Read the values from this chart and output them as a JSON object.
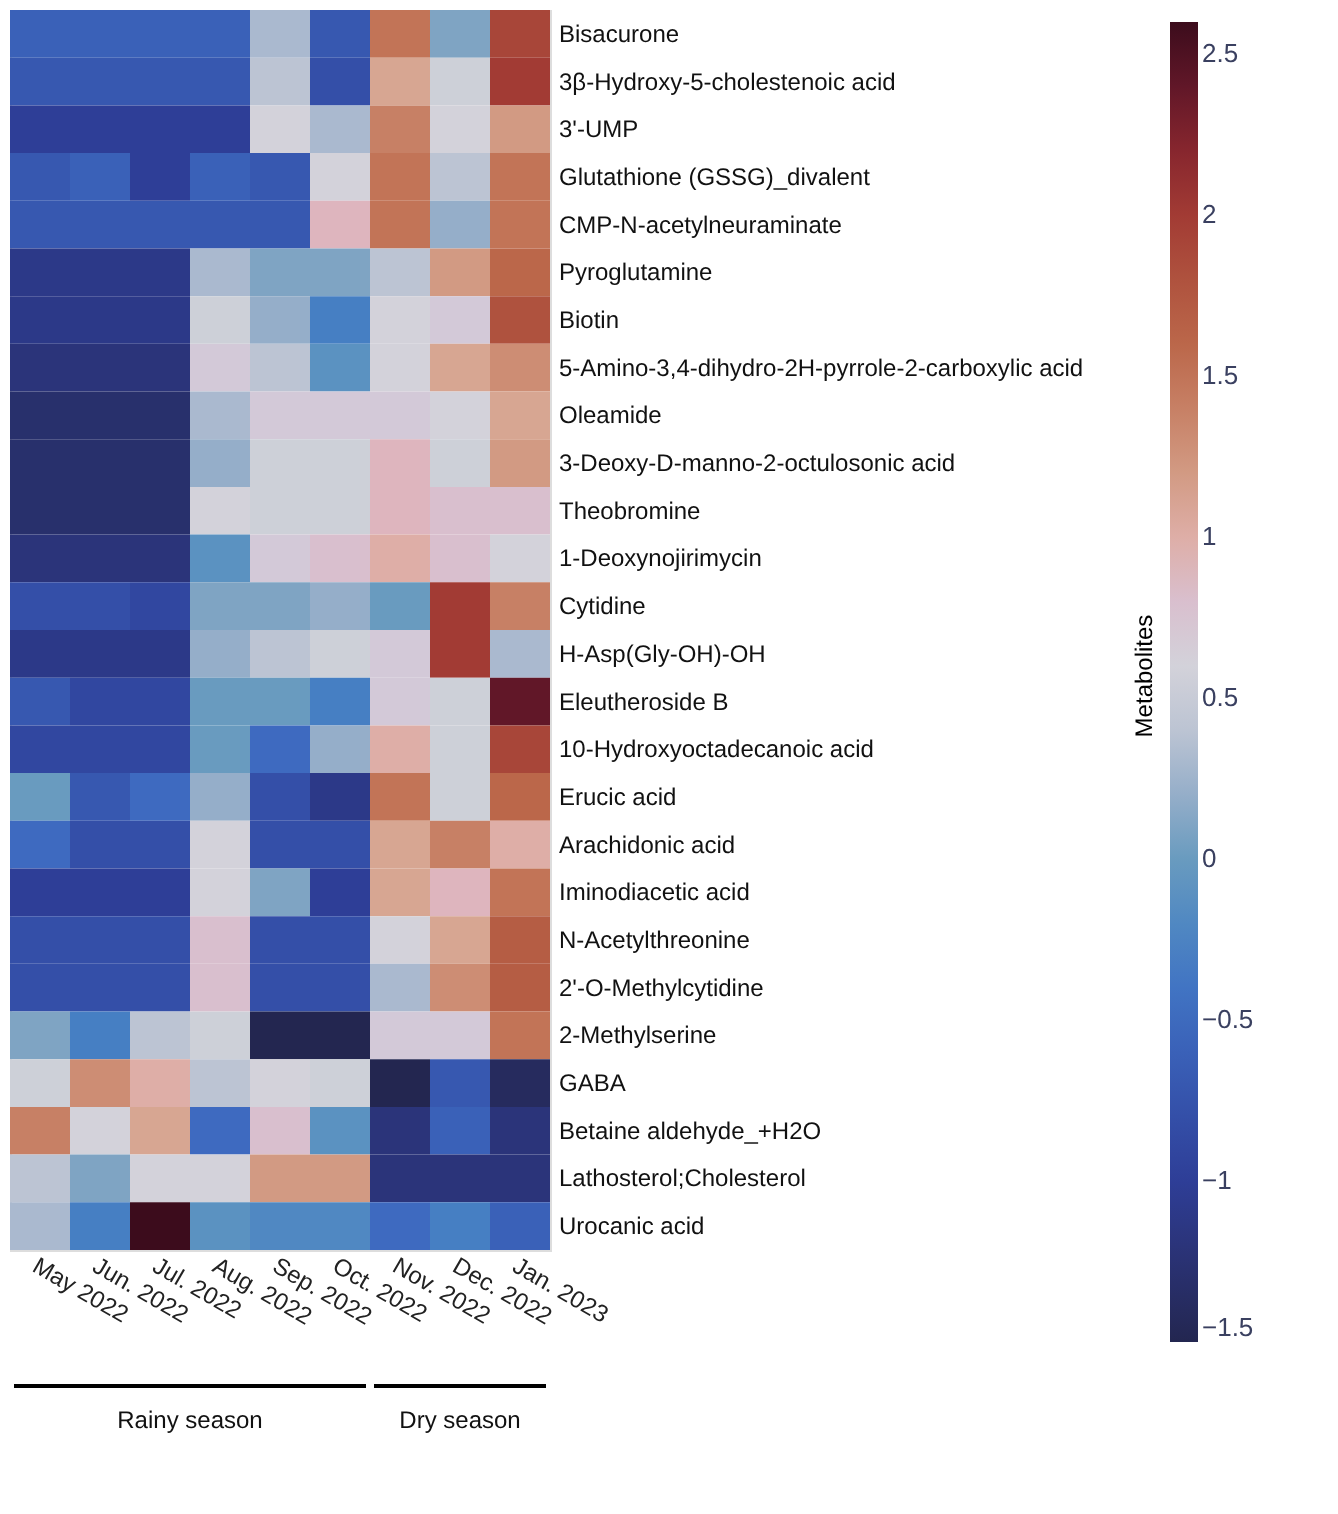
{
  "chart_data": {
    "type": "heatmap",
    "categories": [
      "May 2022",
      "Jun. 2022",
      "Jul. 2022",
      "Aug. 2022",
      "Sep. 2022",
      "Oct. 2022",
      "Nov. 2022",
      "Dec. 2022",
      "Jan. 2023"
    ],
    "y_categories": [
      "Bisacurone",
      "3β-Hydroxy-5-cholestenoic acid",
      "3'-UMP",
      "Glutathione (GSSG)_divalent",
      "CMP-N-acetylneuraminate",
      "Pyroglutamine",
      "Biotin",
      "5-Amino-3,4-dihydro-2H-pyrrole-2-carboxylic acid",
      "Oleamide",
      "3-Deoxy-D-manno-2-octulosonic acid",
      "Theobromine",
      "1-Deoxynojirimycin",
      "Cytidine",
      "H-Asp(Gly-OH)-OH",
      "Eleutheroside B",
      "10-Hydroxyoctadecanoic acid",
      "Erucic acid",
      "Arachidonic acid",
      "Iminodiacetic acid",
      "N-Acetylthreonine",
      "2'-O-Methylcytidine",
      "2-Methylserine",
      "GABA",
      "Betaine aldehyde_+H2O",
      "Lathosterol;Cholesterol",
      "Urocanic acid"
    ],
    "cells": [
      [
        -0.6,
        -0.6,
        -0.6,
        -0.6,
        0.3,
        -0.7,
        1.5,
        0.1,
        1.9
      ],
      [
        -0.7,
        -0.7,
        -0.7,
        -0.7,
        0.4,
        -0.8,
        1.1,
        0.5,
        2.0
      ],
      [
        -1.0,
        -1.0,
        -1.0,
        -1.0,
        0.6,
        0.3,
        1.4,
        0.6,
        1.2
      ],
      [
        -0.7,
        -0.6,
        -1.0,
        -0.6,
        -0.7,
        0.6,
        1.5,
        0.4,
        1.5
      ],
      [
        -0.7,
        -0.7,
        -0.7,
        -0.7,
        -0.7,
        0.9,
        1.5,
        0.2,
        1.5
      ],
      [
        -1.1,
        -1.1,
        -1.1,
        0.3,
        0.1,
        0.1,
        0.4,
        1.2,
        1.6
      ],
      [
        -1.1,
        -1.1,
        -1.1,
        0.5,
        0.2,
        -0.3,
        0.6,
        0.7,
        1.8
      ],
      [
        -1.2,
        -1.2,
        -1.2,
        0.7,
        0.4,
        -0.1,
        0.6,
        1.1,
        1.3
      ],
      [
        -1.3,
        -1.3,
        -1.3,
        0.3,
        0.7,
        0.7,
        0.7,
        0.6,
        1.1
      ],
      [
        -1.3,
        -1.3,
        -1.3,
        0.2,
        0.5,
        0.5,
        0.9,
        0.5,
        1.2
      ],
      [
        -1.3,
        -1.3,
        -1.3,
        0.6,
        0.5,
        0.5,
        0.9,
        0.8,
        0.8
      ],
      [
        -1.2,
        -1.2,
        -1.2,
        -0.1,
        0.7,
        0.8,
        1.0,
        0.8,
        0.6
      ],
      [
        -0.8,
        -0.8,
        -0.9,
        0.1,
        0.1,
        0.2,
        0.0,
        2.0,
        1.4
      ],
      [
        -1.1,
        -1.1,
        -1.1,
        0.2,
        0.4,
        0.5,
        0.7,
        2.0,
        0.3
      ],
      [
        -0.7,
        -0.9,
        -0.9,
        0.0,
        0.0,
        -0.3,
        0.7,
        0.5,
        2.4
      ],
      [
        -0.9,
        -0.9,
        -0.9,
        0.0,
        -0.5,
        0.2,
        1.0,
        0.5,
        1.9
      ],
      [
        0.0,
        -0.7,
        -0.5,
        0.2,
        -0.8,
        -1.1,
        1.5,
        0.5,
        1.6
      ],
      [
        -0.5,
        -0.8,
        -0.8,
        0.6,
        -0.8,
        -0.8,
        1.1,
        1.4,
        1.0
      ],
      [
        -1.0,
        -1.0,
        -1.0,
        0.6,
        0.1,
        -1.0,
        1.1,
        0.9,
        1.5
      ],
      [
        -0.8,
        -0.8,
        -0.8,
        0.8,
        -0.8,
        -0.8,
        0.6,
        1.1,
        1.7
      ],
      [
        -0.8,
        -0.8,
        -0.8,
        0.8,
        -0.8,
        -0.8,
        0.3,
        1.3,
        1.7
      ],
      [
        0.1,
        -0.3,
        0.4,
        0.5,
        -1.5,
        -1.5,
        0.7,
        0.7,
        1.5
      ],
      [
        0.5,
        1.3,
        1.0,
        0.4,
        0.6,
        0.5,
        -1.5,
        -0.7,
        -1.4
      ],
      [
        1.4,
        0.6,
        1.1,
        -0.5,
        0.8,
        -0.1,
        -1.2,
        -0.6,
        -1.2
      ],
      [
        0.4,
        0.1,
        0.6,
        0.6,
        1.2,
        1.2,
        -1.2,
        -1.2,
        -1.2
      ],
      [
        0.3,
        -0.3,
        2.6,
        -0.1,
        -0.2,
        -0.2,
        -0.5,
        -0.3,
        -0.6
      ]
    ],
    "clim": [
      -1.5,
      2.6
    ],
    "cticks": [
      -1.5,
      -1,
      -0.5,
      0,
      0.5,
      1,
      1.5,
      2,
      2.5
    ],
    "clabel": "Metabolites",
    "annotations": [
      "Rainy season",
      "Dry season"
    ],
    "grid": false
  }
}
